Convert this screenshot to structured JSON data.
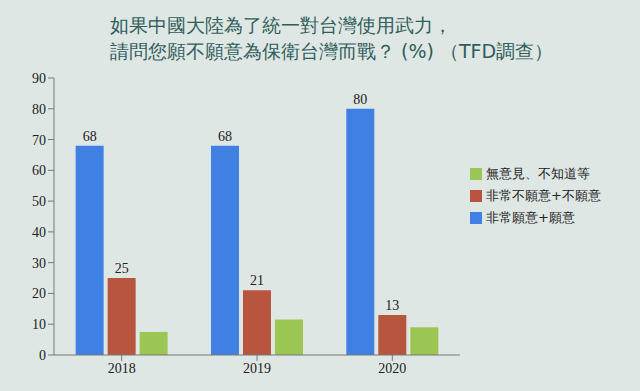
{
  "chart_data": {
    "type": "bar",
    "title": "如果中國大陸為了統一對台灣使用武力，\n請問您願不願意為保衛台灣而戰？ (%) （TFD調查）",
    "categories": [
      "2018",
      "2019",
      "2020"
    ],
    "series": [
      {
        "name": "非常願意+願意",
        "color": "#3f80e2",
        "values": [
          68,
          68,
          80
        ],
        "data_labels": true
      },
      {
        "name": "非常不願意+不願意",
        "color": "#b8553f",
        "values": [
          25,
          21,
          13
        ],
        "data_labels": true
      },
      {
        "name": "無意見、不知道等",
        "color": "#9cc653",
        "values": [
          7.5,
          11.5,
          9
        ],
        "data_labels": false
      }
    ],
    "ylim": [
      0,
      90
    ],
    "yticks": [
      0,
      10,
      20,
      30,
      40,
      50,
      60,
      70,
      80,
      90
    ],
    "grid": false,
    "legend": "right"
  }
}
